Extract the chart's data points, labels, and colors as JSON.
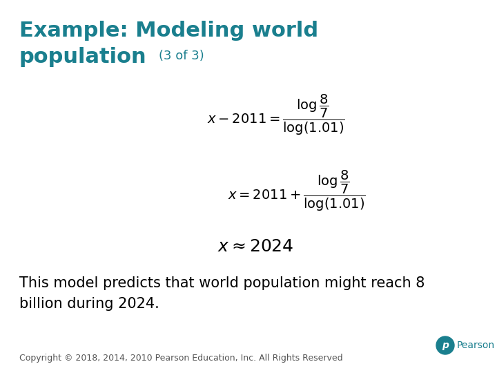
{
  "title_line1": "Example: Modeling world",
  "title_line2": "population",
  "title_sub": "(3 of 3)",
  "title_color": "#1a7f8e",
  "bg_color": "#ffffff",
  "body_text_line1": "This model predicts that world population might reach 8",
  "body_text_line2": "billion during 2024.",
  "footer_text": "Copyright © 2018, 2014, 2010 Pearson Education, Inc. All Rights Reserved",
  "footer_color": "#555555",
  "eq_color": "#000000",
  "body_color": "#000000",
  "title_fontsize": 22,
  "subtitle_fontsize": 13,
  "eq_fontsize": 14,
  "eq3_fontsize": 18,
  "body_fontsize": 15,
  "footer_fontsize": 9,
  "pearson_color": "#1a7f8e"
}
